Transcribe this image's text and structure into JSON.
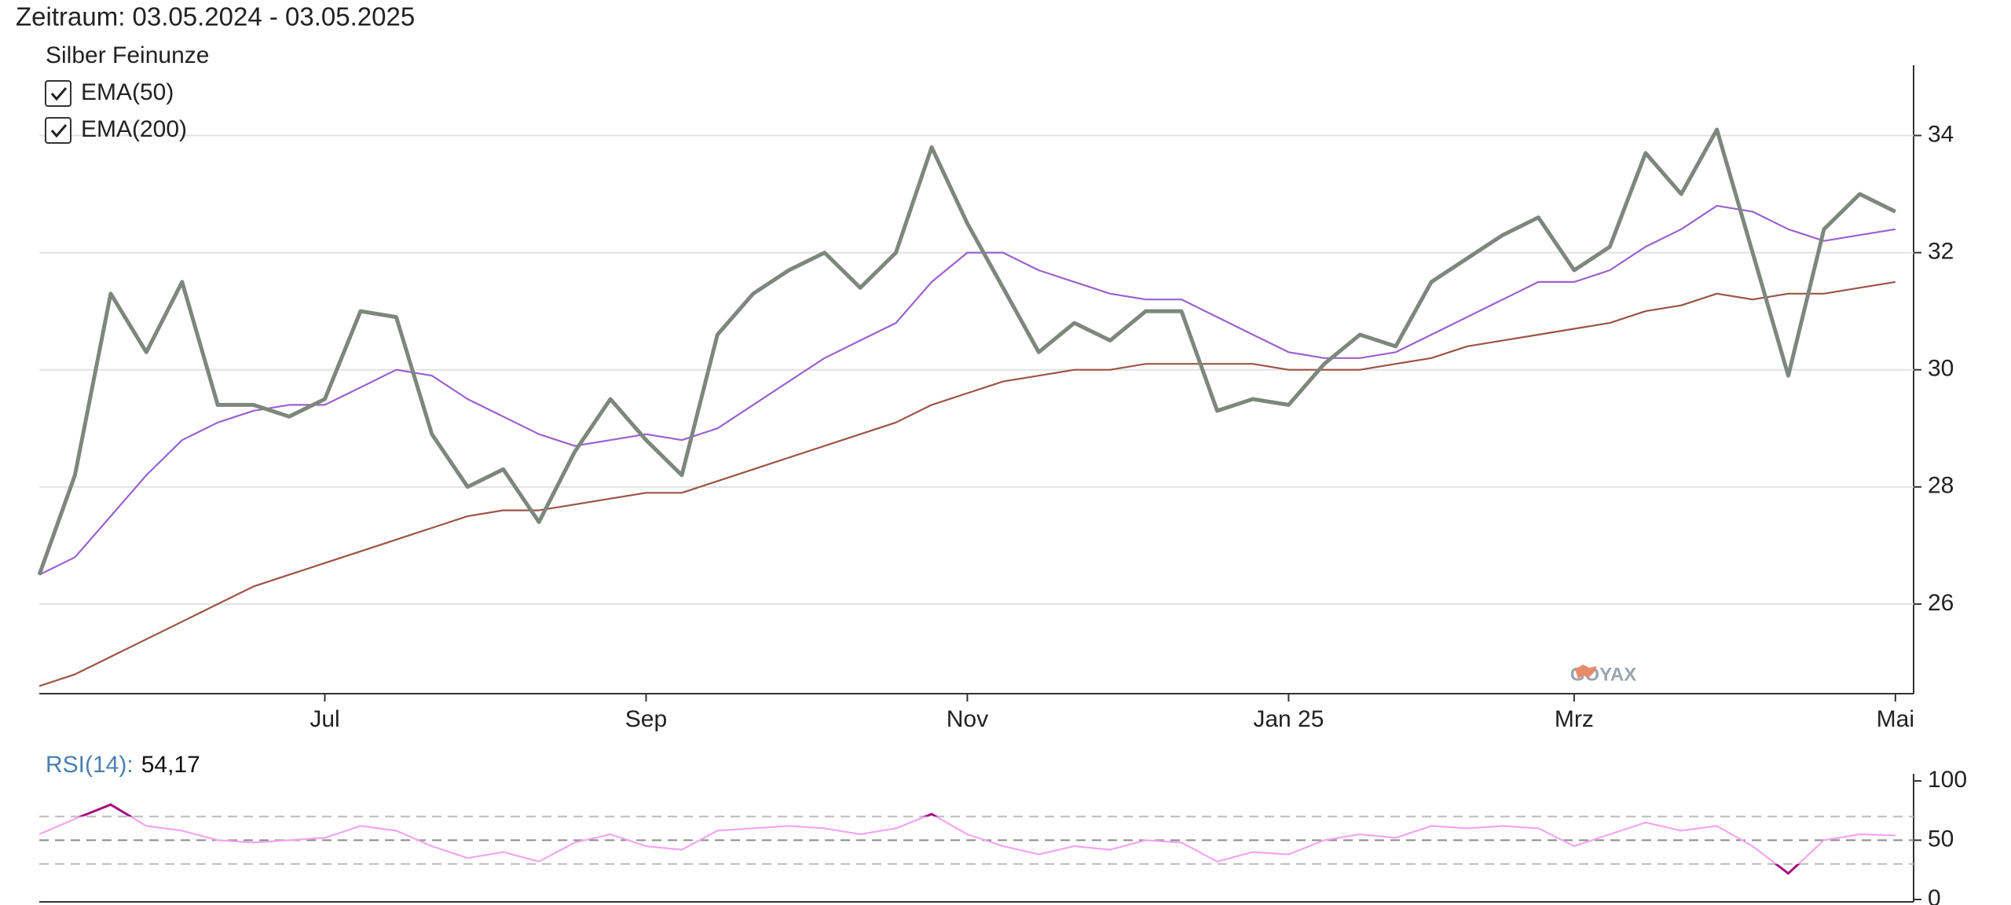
{
  "header": {
    "title": "Zeitraum: 03.05.2024 - 03.05.2025"
  },
  "watermark": "GOYAX",
  "chart_data": [
    {
      "type": "line",
      "categories": [
        null,
        null,
        null,
        null,
        null,
        null,
        null,
        null,
        "Jul",
        null,
        null,
        null,
        null,
        null,
        null,
        null,
        null,
        "Sep",
        null,
        null,
        null,
        null,
        null,
        null,
        null,
        null,
        "Nov",
        null,
        null,
        null,
        null,
        null,
        null,
        null,
        null,
        "Jan 25",
        null,
        null,
        null,
        null,
        null,
        null,
        null,
        "Mrz",
        null,
        null,
        null,
        null,
        null,
        null,
        null,
        null,
        "Mai"
      ],
      "series": [
        {
          "name": "Silber Feinunze",
          "color": "#7d877d",
          "values": [
            26.5,
            28.2,
            31.3,
            30.3,
            31.5,
            29.4,
            29.4,
            29.2,
            29.5,
            31.0,
            30.9,
            28.9,
            28.0,
            28.3,
            27.4,
            28.6,
            29.5,
            28.8,
            28.2,
            30.6,
            31.3,
            31.7,
            32.0,
            31.4,
            32.0,
            33.8,
            32.5,
            31.4,
            30.3,
            30.8,
            30.5,
            31.0,
            31.0,
            29.3,
            29.5,
            29.4,
            30.1,
            30.6,
            30.4,
            31.5,
            31.9,
            32.3,
            32.6,
            31.7,
            32.1,
            33.7,
            33.0,
            34.1,
            32.0,
            29.9,
            32.4,
            33.0,
            32.7
          ]
        },
        {
          "name": "EMA(50)",
          "color": "#9b62cc",
          "values": [
            26.5,
            26.8,
            27.5,
            28.2,
            28.8,
            29.1,
            29.3,
            29.4,
            29.4,
            29.7,
            30.0,
            29.9,
            29.5,
            29.2,
            28.9,
            28.7,
            28.8,
            28.9,
            28.8,
            29.0,
            29.4,
            29.8,
            30.2,
            30.5,
            30.8,
            31.5,
            32.0,
            32.0,
            31.7,
            31.5,
            31.3,
            31.2,
            31.2,
            30.9,
            30.6,
            30.3,
            30.2,
            30.2,
            30.3,
            30.6,
            30.9,
            31.2,
            31.5,
            31.5,
            31.7,
            32.1,
            32.4,
            32.8,
            32.7,
            32.4,
            32.2,
            32.3,
            32.4
          ]
        },
        {
          "name": "EMA(200)",
          "color": "#9b5545",
          "values": [
            24.6,
            24.8,
            25.1,
            25.4,
            25.7,
            26.0,
            26.3,
            26.5,
            26.7,
            26.9,
            27.1,
            27.3,
            27.5,
            27.6,
            27.6,
            27.7,
            27.8,
            27.9,
            27.9,
            28.1,
            28.3,
            28.5,
            28.7,
            28.9,
            29.1,
            29.4,
            29.6,
            29.8,
            29.9,
            30.0,
            30.0,
            30.1,
            30.1,
            30.1,
            30.1,
            30.0,
            30.0,
            30.0,
            30.1,
            30.2,
            30.4,
            30.5,
            30.6,
            30.7,
            30.8,
            31.0,
            31.1,
            31.3,
            31.2,
            31.3,
            31.3,
            31.4,
            31.5
          ]
        }
      ],
      "ylim": [
        24.47,
        35.2
      ],
      "yticks": [
        26,
        28,
        30,
        32,
        34
      ],
      "grid": true
    },
    {
      "type": "line",
      "title": "RSI(14):",
      "current": "54,17",
      "series": [
        {
          "name": "RSI(14)",
          "color": "#f2a6f0",
          "extreme_color": "#a3107f",
          "values": [
            55,
            68,
            80,
            62,
            58,
            50,
            48,
            50,
            52,
            62,
            58,
            45,
            35,
            40,
            32,
            48,
            55,
            45,
            42,
            58,
            60,
            62,
            60,
            55,
            60,
            72,
            55,
            45,
            38,
            45,
            42,
            50,
            48,
            32,
            40,
            38,
            50,
            55,
            52,
            62,
            60,
            62,
            60,
            45,
            55,
            65,
            58,
            62,
            45,
            22,
            50,
            55,
            54
          ]
        }
      ],
      "ylim": [
        -2,
        106
      ],
      "yticks": [
        0,
        50,
        100
      ],
      "levels": [
        30,
        50,
        70
      ]
    }
  ]
}
